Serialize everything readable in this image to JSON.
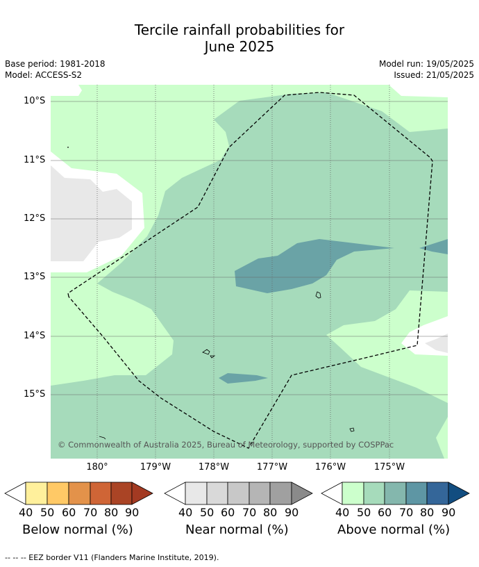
{
  "title_line1": "Tercile rainfall probabilities for",
  "title_line2": "June 2025",
  "meta": {
    "base_period": "Base period: 1981-2018",
    "model": "Model: ACCESS-S2",
    "model_run": "Model run: 19/05/2025",
    "issued": "Issued: 21/05/2025"
  },
  "map": {
    "lat_labels": [
      "10°S",
      "11°S",
      "12°S",
      "13°S",
      "14°S",
      "15°S"
    ],
    "lon_labels": [
      "180°",
      "179°W",
      "178°W",
      "177°W",
      "176°W",
      "175°W"
    ],
    "copyright": "© Commonwealth of Australia 2025, Bureau of Meteorology, supported by COSPPac"
  },
  "colorbars": [
    {
      "name": "below",
      "title": "Below normal (%)",
      "ticks": [
        "40",
        "50",
        "60",
        "70",
        "80",
        "90"
      ],
      "colors": [
        "#fff09c",
        "#ffc966",
        "#e3924a",
        "#cf6536",
        "#aa4425",
        "#a33a22"
      ]
    },
    {
      "name": "near",
      "title": "Near normal (%)",
      "ticks": [
        "40",
        "50",
        "60",
        "70",
        "80",
        "90"
      ],
      "colors": [
        "#e8e8e8",
        "#d9d9d9",
        "#c8c8c8",
        "#b5b5b5",
        "#a0a0a0",
        "#8a8a8a"
      ]
    },
    {
      "name": "above",
      "title": "Above normal (%)",
      "ticks": [
        "40",
        "50",
        "60",
        "70",
        "80",
        "90"
      ],
      "colors": [
        "#ccffcc",
        "#a6dbbb",
        "#84b7ad",
        "#5e96a4",
        "#346699",
        "#124d80"
      ]
    }
  ],
  "footer": "-- -- -- EEZ border V11 (Flanders Marine Institute, 2019)."
}
